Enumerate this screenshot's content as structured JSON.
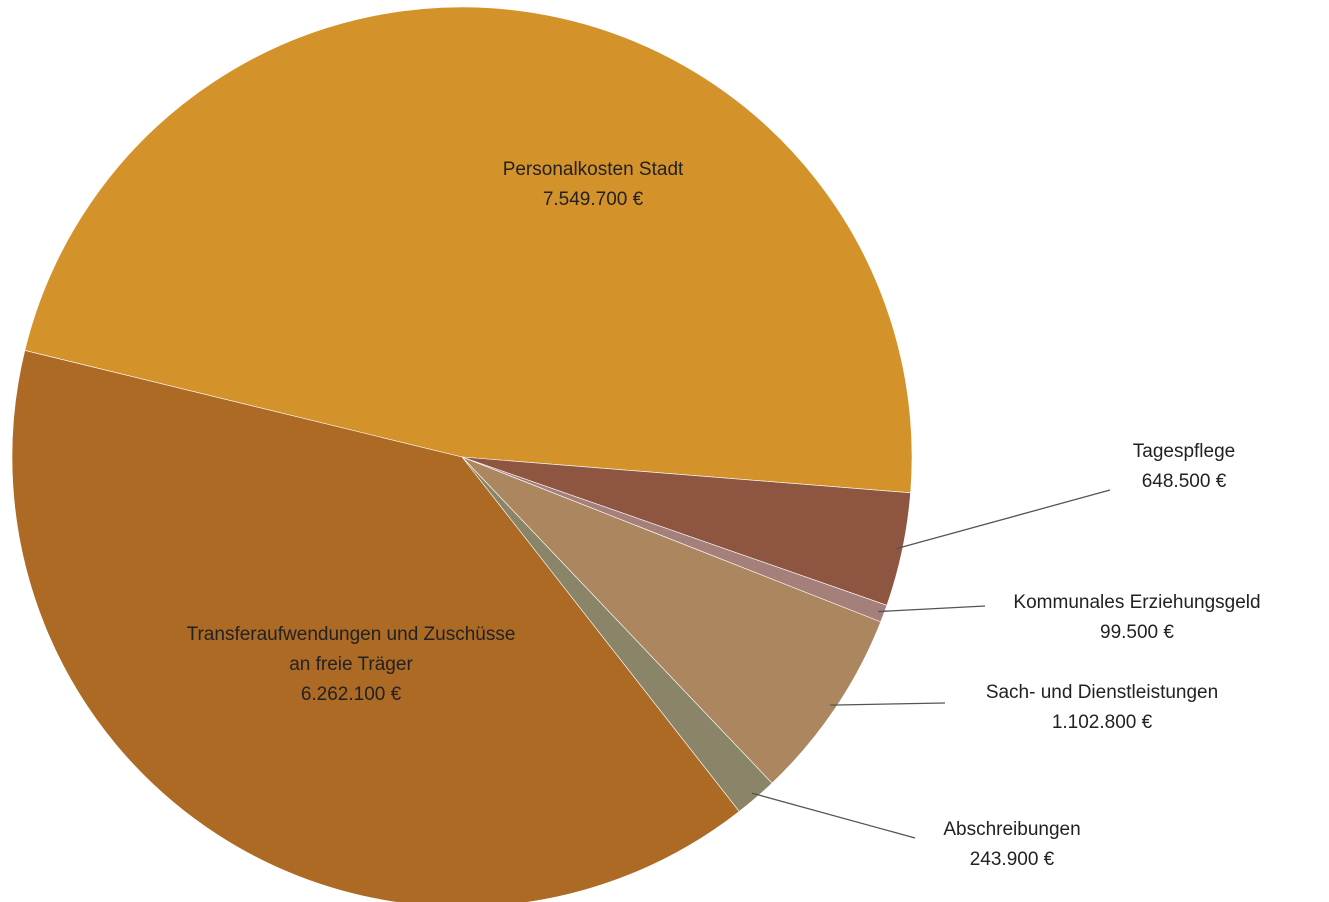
{
  "chart_data": {
    "type": "pie",
    "categories": [
      "Personalkosten Stadt",
      "Tagespflege",
      "Kommunales Erziehungsgeld",
      "Sach- und Dienstleistungen",
      "Abschreibungen",
      "Transferaufwendungen und Zuschüsse an freie Träger"
    ],
    "values": [
      7549700,
      648500,
      99500,
      1102800,
      243900,
      6262100
    ],
    "value_labels": [
      "7.549.700 €",
      "648.500 €",
      "99.500 €",
      "1.102.800 €",
      "243.900 €",
      "6.262.100 €"
    ],
    "colors": [
      "#D4922A",
      "#8E5640",
      "#A57F7A",
      "#AB865E",
      "#8A8468",
      "#AC6A24"
    ]
  }
}
